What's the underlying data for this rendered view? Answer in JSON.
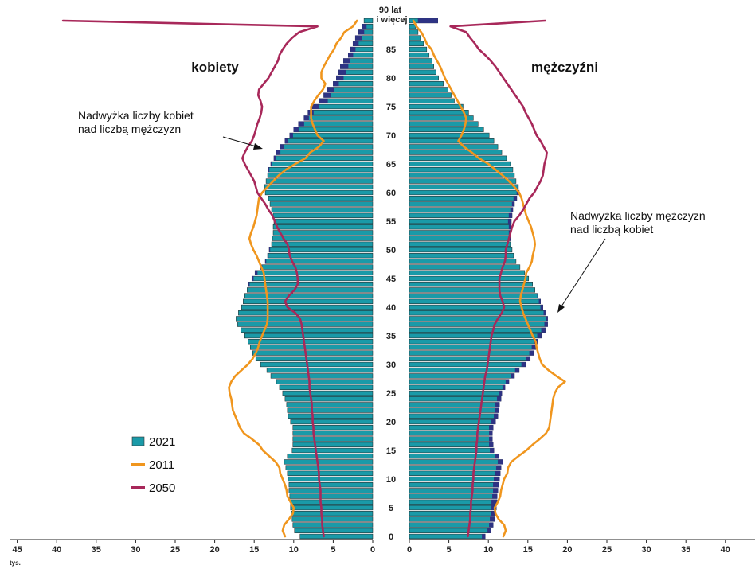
{
  "chart_data": {
    "type": "bar",
    "subtype": "population-pyramid",
    "left_group": "kobiety",
    "right_group": "mężczyźni",
    "x_unit": "tys.",
    "x_ticks_left": [
      "45",
      "40",
      "35",
      "30",
      "25",
      "20",
      "15",
      "10",
      "5",
      "0"
    ],
    "x_ticks_right": [
      "0",
      "5",
      "10",
      "15",
      "20",
      "25",
      "30",
      "35",
      "40"
    ],
    "xlim": [
      0,
      45
    ],
    "age_labels": [
      "0",
      "5",
      "10",
      "15",
      "20",
      "25",
      "30",
      "35",
      "40",
      "45",
      "50",
      "55",
      "60",
      "65",
      "70",
      "75",
      "80",
      "85"
    ],
    "top_age_label_line1": "90 lat",
    "top_age_label_line2": "i więcej",
    "annotations": {
      "women_surplus_line1": "Nadwyżka liczby kobiet",
      "women_surplus_line2": "nad liczbą mężczyzn",
      "men_surplus_line1": "Nadwyżka liczby mężczyzn",
      "men_surplus_line2": "nad liczbą kobiet"
    },
    "legend": [
      {
        "label": "2021",
        "color": "#1a9aa8"
      },
      {
        "label": "2011",
        "color": "#f0961e"
      },
      {
        "label": "2050",
        "color": "#a8285a"
      }
    ],
    "colors": {
      "bars": "#1a9aa8",
      "surplus": "#2e3384",
      "y2011": "#f0961e",
      "y2050": "#a8285a",
      "bar_outline": "#1d1d1d"
    },
    "ages": [
      0,
      1,
      2,
      3,
      4,
      5,
      6,
      7,
      8,
      9,
      10,
      11,
      12,
      13,
      14,
      15,
      16,
      17,
      18,
      19,
      20,
      21,
      22,
      23,
      24,
      25,
      26,
      27,
      28,
      29,
      30,
      31,
      32,
      33,
      34,
      35,
      36,
      37,
      38,
      39,
      40,
      41,
      42,
      43,
      44,
      45,
      46,
      47,
      48,
      49,
      50,
      51,
      52,
      53,
      54,
      55,
      56,
      57,
      58,
      59,
      60,
      61,
      62,
      63,
      64,
      65,
      66,
      67,
      68,
      69,
      70,
      71,
      72,
      73,
      74,
      75,
      76,
      77,
      78,
      79,
      80,
      81,
      82,
      83,
      84,
      85,
      86,
      87,
      88,
      89,
      90
    ],
    "series": [
      {
        "name": "kobiety 2021",
        "side": "left",
        "values": [
          9.2,
          9.9,
          10.1,
          10.2,
          10.3,
          10.4,
          10.4,
          10.5,
          10.6,
          10.6,
          10.7,
          10.8,
          11.0,
          11.2,
          10.8,
          10.2,
          10.1,
          10.1,
          10.1,
          10.1,
          10.4,
          10.7,
          10.8,
          10.9,
          11.1,
          11.4,
          11.8,
          12.2,
          12.9,
          13.4,
          14.2,
          14.8,
          15.2,
          15.5,
          15.8,
          16.2,
          16.7,
          17.1,
          17.3,
          17.0,
          16.6,
          16.4,
          16.2,
          15.9,
          15.7,
          15.3,
          14.9,
          14.2,
          13.6,
          13.3,
          13.1,
          12.8,
          12.7,
          12.6,
          12.6,
          12.5,
          12.6,
          12.8,
          13.0,
          13.2,
          13.6,
          13.7,
          13.5,
          13.3,
          13.2,
          12.9,
          12.5,
          12.2,
          11.7,
          11.1,
          10.5,
          10.0,
          9.4,
          8.7,
          8.2,
          7.8,
          6.8,
          6.2,
          5.8,
          5.0,
          4.6,
          4.3,
          4.1,
          3.7,
          3.1,
          2.8,
          2.5,
          2.2,
          1.8,
          1.3,
          1.1
        ]
      },
      {
        "name": "mężczyźni 2021",
        "side": "right",
        "values": [
          9.6,
          10.3,
          10.6,
          10.8,
          10.9,
          11.0,
          11.1,
          11.1,
          11.2,
          11.3,
          11.4,
          11.5,
          11.6,
          11.8,
          11.3,
          10.7,
          10.6,
          10.5,
          10.5,
          10.6,
          10.9,
          11.2,
          11.3,
          11.4,
          11.6,
          11.7,
          12.1,
          12.6,
          13.3,
          13.9,
          14.7,
          15.3,
          15.7,
          16.0,
          16.3,
          16.7,
          17.2,
          17.5,
          17.5,
          17.2,
          16.9,
          16.6,
          16.3,
          15.9,
          15.6,
          15.1,
          14.6,
          14.0,
          13.5,
          13.2,
          13.0,
          12.8,
          12.8,
          12.8,
          12.8,
          12.9,
          13.0,
          13.1,
          13.3,
          13.6,
          13.9,
          13.8,
          13.5,
          13.3,
          13.1,
          12.8,
          12.3,
          11.7,
          11.2,
          10.7,
          10.1,
          9.4,
          8.7,
          8.1,
          7.5,
          6.8,
          5.7,
          5.3,
          4.9,
          4.3,
          3.7,
          3.4,
          3.1,
          2.9,
          2.5,
          2.2,
          1.8,
          1.4,
          1.1,
          0.8,
          3.6
        ]
      },
      {
        "name": "kobiety 2011",
        "side": "left",
        "values": [
          11.1,
          11.4,
          11.2,
          10.6,
          10.1,
          10.0,
          10.4,
          10.8,
          10.9,
          11.1,
          11.4,
          11.7,
          11.8,
          12.3,
          13.1,
          13.9,
          14.4,
          15.3,
          16.3,
          16.8,
          17.1,
          17.4,
          17.7,
          17.8,
          17.9,
          18.1,
          18.2,
          17.9,
          17.4,
          16.6,
          15.8,
          15.2,
          14.8,
          14.5,
          14.3,
          14.0,
          13.7,
          13.4,
          13.3,
          13.3,
          13.3,
          13.3,
          13.4,
          13.5,
          13.6,
          13.7,
          13.8,
          14.1,
          14.4,
          14.7,
          15.1,
          15.4,
          15.6,
          15.4,
          15.1,
          14.9,
          14.7,
          14.6,
          14.5,
          14.4,
          14.0,
          13.3,
          12.6,
          11.9,
          11.0,
          9.8,
          8.5,
          7.9,
          6.8,
          6.2,
          7.0,
          7.3,
          7.6,
          7.8,
          7.8,
          7.8,
          7.4,
          6.9,
          6.3,
          6.0,
          6.5,
          6.5,
          6.2,
          5.8,
          5.4,
          4.9,
          4.6,
          4.0,
          3.6,
          2.5,
          2.0
        ]
      },
      {
        "name": "mężczyźni 2011",
        "side": "right",
        "values": [
          11.9,
          12.2,
          12.0,
          11.3,
          10.9,
          10.8,
          11.2,
          11.5,
          11.6,
          11.8,
          12.0,
          12.4,
          12.5,
          12.9,
          13.8,
          14.8,
          15.6,
          16.5,
          17.3,
          17.7,
          17.8,
          17.9,
          18.0,
          18.1,
          18.2,
          18.4,
          18.8,
          19.7,
          18.6,
          17.6,
          16.8,
          16.5,
          16.3,
          16.1,
          16.0,
          15.6,
          15.3,
          15.0,
          14.7,
          14.4,
          14.2,
          14.0,
          14.1,
          14.3,
          14.5,
          14.7,
          14.8,
          15.2,
          15.5,
          15.6,
          15.8,
          15.9,
          15.8,
          15.6,
          15.4,
          15.1,
          14.8,
          14.6,
          14.4,
          14.2,
          13.9,
          13.3,
          12.6,
          11.8,
          10.9,
          10.0,
          8.8,
          7.9,
          6.9,
          6.2,
          6.6,
          6.9,
          7.1,
          7.2,
          6.9,
          6.5,
          6.1,
          5.7,
          5.3,
          4.9,
          4.5,
          4.2,
          3.9,
          3.5,
          3.1,
          2.8,
          2.2,
          1.9,
          1.5,
          0.9,
          0.5
        ]
      },
      {
        "name": "kobiety 2050",
        "side": "left",
        "values": [
          6.2,
          6.3,
          6.4,
          6.4,
          6.5,
          6.5,
          6.6,
          6.6,
          6.6,
          6.7,
          6.8,
          6.8,
          6.9,
          7.0,
          7.1,
          7.2,
          7.3,
          7.4,
          7.5,
          7.5,
          7.6,
          7.6,
          7.7,
          7.7,
          7.8,
          7.9,
          8.0,
          8.0,
          8.1,
          8.2,
          8.3,
          8.4,
          8.5,
          8.6,
          8.7,
          8.8,
          8.9,
          9.0,
          9.2,
          9.8,
          10.8,
          11.1,
          10.6,
          9.9,
          9.5,
          9.5,
          9.6,
          9.8,
          10.2,
          10.5,
          10.6,
          10.8,
          11.3,
          11.7,
          12.1,
          12.4,
          12.7,
          13.2,
          13.6,
          14.1,
          14.6,
          14.8,
          15.0,
          15.4,
          15.8,
          16.2,
          16.5,
          16.2,
          15.8,
          15.3,
          15.0,
          14.8,
          14.6,
          14.3,
          14.1,
          14.0,
          14.2,
          14.5,
          14.4,
          13.8,
          13.2,
          12.8,
          12.4,
          12.0,
          11.8,
          11.4,
          10.9,
          10.2,
          9.3,
          7.0,
          39.2
        ]
      },
      {
        "name": "mężczyźni 2050",
        "side": "right",
        "values": [
          7.4,
          7.5,
          7.6,
          7.7,
          7.7,
          7.8,
          7.8,
          7.9,
          8.0,
          8.0,
          8.1,
          8.1,
          8.2,
          8.3,
          8.4,
          8.5,
          8.5,
          8.6,
          8.6,
          8.7,
          8.8,
          8.9,
          9.0,
          9.1,
          9.2,
          9.3,
          9.4,
          9.5,
          9.6,
          9.8,
          9.9,
          10.0,
          10.1,
          10.2,
          10.3,
          10.4,
          10.6,
          10.8,
          11.2,
          11.7,
          12.0,
          11.8,
          11.5,
          11.4,
          11.4,
          11.4,
          11.6,
          11.8,
          12.1,
          12.2,
          12.2,
          12.4,
          12.6,
          12.8,
          13.0,
          13.3,
          13.9,
          14.4,
          14.8,
          15.2,
          15.8,
          16.2,
          16.6,
          16.9,
          17.0,
          17.1,
          17.3,
          17.4,
          17.0,
          16.6,
          16.1,
          15.8,
          15.5,
          15.1,
          14.7,
          14.4,
          13.9,
          13.4,
          12.9,
          12.4,
          11.9,
          11.4,
          10.9,
          10.3,
          9.6,
          8.8,
          8.3,
          7.7,
          7.2,
          5.2,
          17.2
        ]
      }
    ]
  }
}
